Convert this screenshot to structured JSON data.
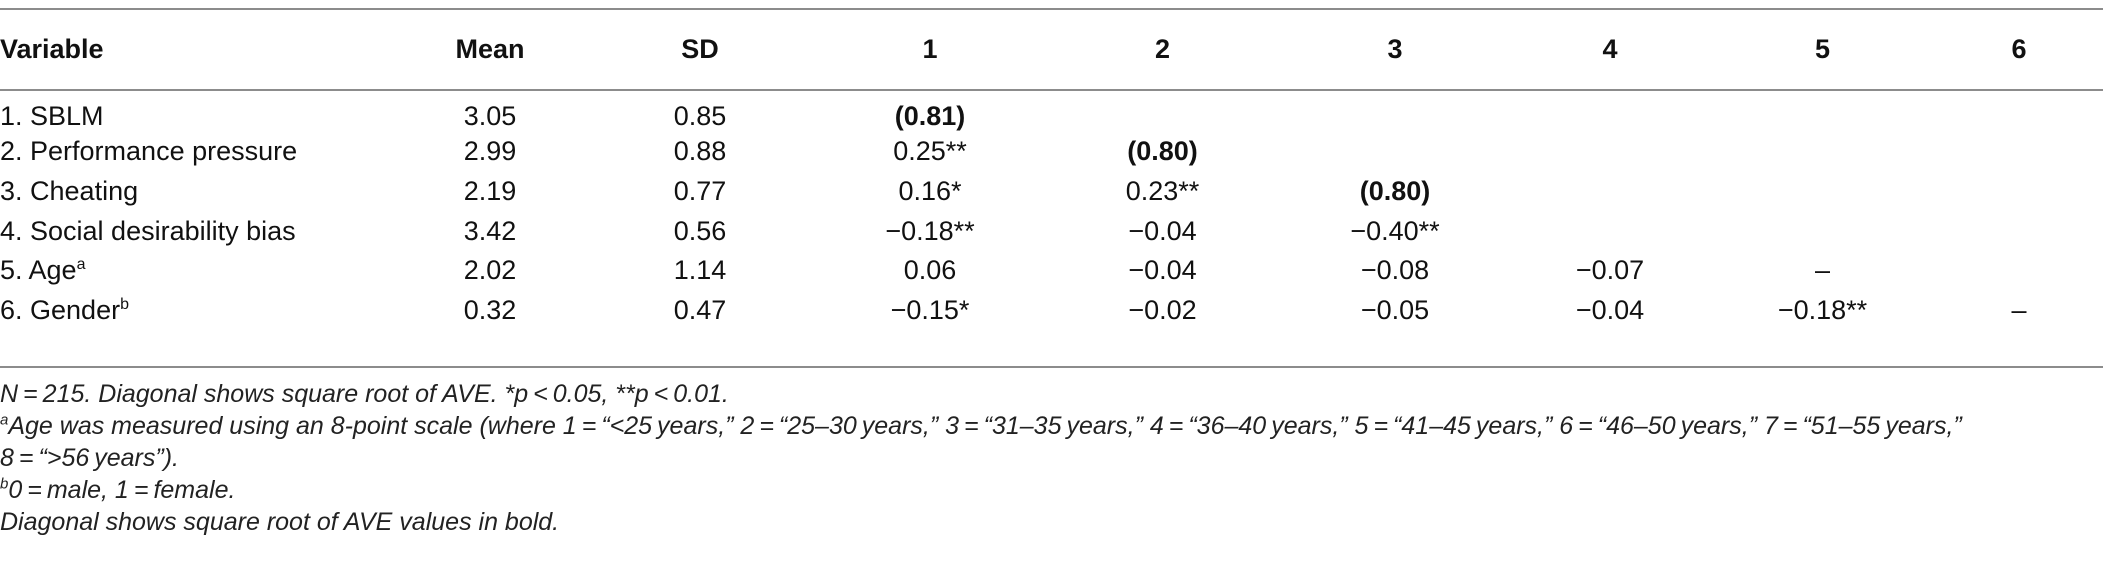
{
  "table": {
    "headers": [
      "Variable",
      "Mean",
      "SD",
      "1",
      "2",
      "3",
      "4",
      "5",
      "6"
    ],
    "rows": [
      {
        "variable": "1. SBLM",
        "sup": "",
        "cells": [
          "3.05",
          "0.85",
          "(0.81)",
          "",
          "",
          "",
          "",
          ""
        ],
        "bold_index": 2
      },
      {
        "variable": "2. Performance pressure",
        "sup": "",
        "cells": [
          "2.99",
          "0.88",
          "0.25**",
          "(0.80)",
          "",
          "",
          "",
          ""
        ],
        "bold_index": 3
      },
      {
        "variable": "3. Cheating",
        "sup": "",
        "cells": [
          "2.19",
          "0.77",
          "0.16*",
          "0.23**",
          "(0.80)",
          "",
          "",
          ""
        ],
        "bold_index": 4
      },
      {
        "variable": "4. Social desirability bias",
        "sup": "",
        "cells": [
          "3.42",
          "0.56",
          "−0.18**",
          "−0.04",
          "−0.40**",
          "",
          "",
          ""
        ],
        "bold_index": -1
      },
      {
        "variable": "5. Age",
        "sup": "a",
        "cells": [
          "2.02",
          "1.14",
          "0.06",
          "−0.04",
          "−0.08",
          "−0.07",
          "–",
          ""
        ],
        "bold_index": -1
      },
      {
        "variable": "6. Gender",
        "sup": "b",
        "cells": [
          "0.32",
          "0.47",
          "−0.15*",
          "−0.02",
          "−0.05",
          "−0.04",
          "−0.18**",
          "–"
        ],
        "bold_index": -1
      }
    ]
  },
  "notes": {
    "note1": "N = 215. Diagonal shows square root of AVE. *p < 0.05, **p < 0.01.",
    "note2_mark": "a",
    "note2_line1": "Age was measured using an 8-point scale (where 1 = “<25 years,” 2 = “25–30 years,” 3 = “31–35 years,” 4 = “36–40 years,” 5 = “41–45 years,” 6 = “46–50 years,” 7 = “51–55 years,”",
    "note2_line2": "8 = “>56 years”).",
    "note3_mark": "b",
    "note3": "0 = male, 1 = female.",
    "note4": "Diagonal shows square root of AVE values in bold."
  }
}
